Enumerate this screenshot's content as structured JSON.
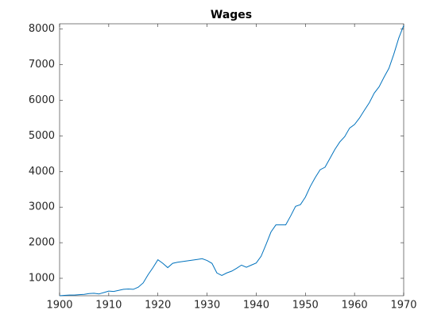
{
  "chart_data": {
    "type": "line",
    "title": "Wages",
    "x": [
      1900,
      1901,
      1902,
      1903,
      1904,
      1905,
      1906,
      1907,
      1908,
      1909,
      1910,
      1911,
      1912,
      1913,
      1914,
      1915,
      1916,
      1917,
      1918,
      1919,
      1920,
      1921,
      1922,
      1923,
      1924,
      1925,
      1926,
      1927,
      1928,
      1929,
      1930,
      1931,
      1932,
      1933,
      1934,
      1935,
      1936,
      1937,
      1938,
      1939,
      1940,
      1941,
      1942,
      1943,
      1944,
      1945,
      1946,
      1947,
      1948,
      1949,
      1950,
      1951,
      1952,
      1953,
      1954,
      1955,
      1956,
      1957,
      1958,
      1959,
      1960,
      1961,
      1962,
      1963,
      1964,
      1965,
      1966,
      1967,
      1968,
      1969,
      1970
    ],
    "series": [
      {
        "color": "#0072bd",
        "values": [
          510,
          520,
          530,
          530,
          540,
          550,
          570,
          580,
          560,
          600,
          640,
          630,
          660,
          690,
          700,
          690,
          750,
          870,
          1100,
          1300,
          1520,
          1420,
          1300,
          1420,
          1450,
          1470,
          1490,
          1510,
          1530,
          1550,
          1500,
          1420,
          1150,
          1080,
          1150,
          1200,
          1280,
          1370,
          1310,
          1370,
          1430,
          1620,
          1950,
          2300,
          2500,
          2500,
          2500,
          2750,
          3020,
          3070,
          3280,
          3580,
          3830,
          4050,
          4120,
          4370,
          4620,
          4830,
          4980,
          5220,
          5320,
          5500,
          5720,
          5930,
          6200,
          6380,
          6650,
          6900,
          7300,
          7750,
          8100
        ]
      }
    ],
    "xlim": [
      1900,
      1970
    ],
    "xticks": [
      1900,
      1910,
      1920,
      1930,
      1940,
      1950,
      1960,
      1970
    ],
    "ylim": [
      510,
      8150
    ],
    "yticks": [
      1000,
      2000,
      3000,
      4000,
      5000,
      6000,
      7000,
      8000
    ]
  }
}
